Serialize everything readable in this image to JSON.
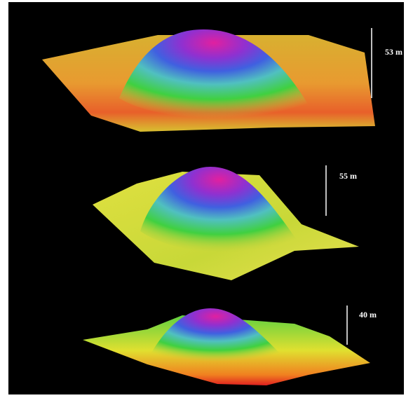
{
  "panels": [
    {
      "scale_label": "53 m"
    },
    {
      "scale_label": "55 m"
    },
    {
      "scale_label": "40 m"
    }
  ]
}
